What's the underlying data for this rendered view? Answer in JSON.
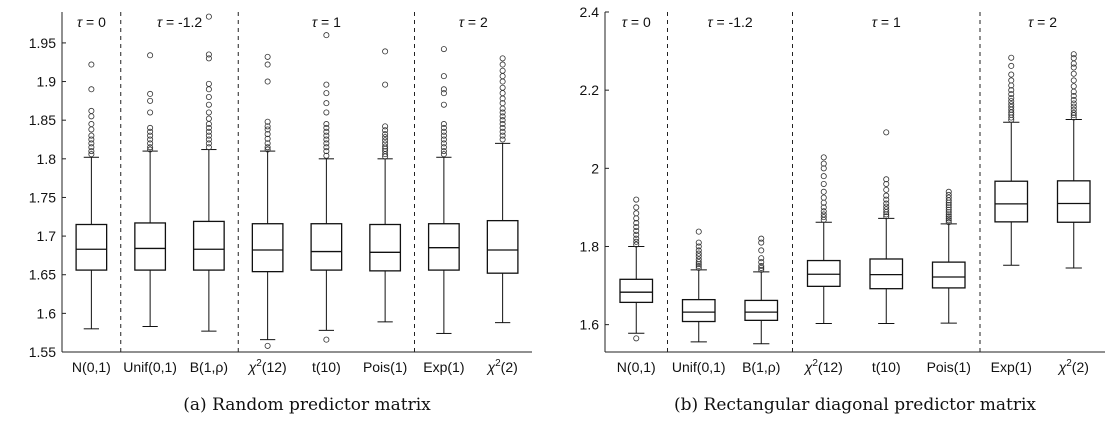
{
  "chart_data": [
    {
      "type": "box",
      "caption": "(a) Random predictor matrix",
      "ylim": [
        1.55,
        1.99
      ],
      "yticks": [
        "1.55",
        "1.6",
        "1.65",
        "1.7",
        "1.75",
        "1.8",
        "1.85",
        "1.9",
        "1.95"
      ],
      "ytick_values": [
        1.55,
        1.6,
        1.65,
        1.7,
        1.75,
        1.8,
        1.85,
        1.9,
        1.95
      ],
      "groups": [
        {
          "label": "τ = 0",
          "size": 1
        },
        {
          "label": "τ = -1.2",
          "size": 2
        },
        {
          "label": "τ = 1",
          "size": 3
        },
        {
          "label": "τ = 2",
          "size": 2
        }
      ],
      "categories": [
        {
          "base": "N(0,1)",
          "sup": ""
        },
        {
          "base": "Unif(0,1)",
          "sup": ""
        },
        {
          "base": "B(1,ρ)",
          "sup": ""
        },
        {
          "base": "χ",
          "sup": "2",
          "tail": "(12)"
        },
        {
          "base": "t(10)",
          "sup": ""
        },
        {
          "base": "Pois(1)",
          "sup": ""
        },
        {
          "base": "Exp(1)",
          "sup": ""
        },
        {
          "base": "χ",
          "sup": "2",
          "tail": "(2)"
        }
      ],
      "boxes": [
        {
          "whislo": 1.58,
          "q1": 1.656,
          "med": 1.683,
          "q3": 1.715,
          "whishi": 1.802,
          "outliers": [
            1.806,
            1.81,
            1.815,
            1.82,
            1.825,
            1.83,
            1.838,
            1.845,
            1.855,
            1.862,
            1.89,
            1.922
          ]
        },
        {
          "whislo": 1.583,
          "q1": 1.656,
          "med": 1.684,
          "q3": 1.717,
          "whishi": 1.81,
          "outliers": [
            1.812,
            1.815,
            1.82,
            1.825,
            1.83,
            1.835,
            1.84,
            1.86,
            1.875,
            1.884,
            1.934
          ]
        },
        {
          "whislo": 1.577,
          "q1": 1.656,
          "med": 1.683,
          "q3": 1.719,
          "whishi": 1.812,
          "outliers": [
            1.815,
            1.82,
            1.825,
            1.83,
            1.835,
            1.84,
            1.845,
            1.852,
            1.86,
            1.87,
            1.88,
            1.89,
            1.897,
            1.93,
            1.935,
            1.984
          ]
        },
        {
          "whislo": 1.566,
          "q1": 1.654,
          "med": 1.682,
          "q3": 1.716,
          "whishi": 1.81,
          "outliers": [
            1.558,
            1.812,
            1.815,
            1.82,
            1.826,
            1.832,
            1.838,
            1.842,
            1.848,
            1.9,
            1.922,
            1.932
          ]
        },
        {
          "whislo": 1.578,
          "q1": 1.656,
          "med": 1.68,
          "q3": 1.716,
          "whishi": 1.8,
          "outliers": [
            1.566,
            1.804,
            1.81,
            1.815,
            1.82,
            1.825,
            1.83,
            1.835,
            1.84,
            1.845,
            1.86,
            1.872,
            1.885,
            1.896,
            1.96
          ]
        },
        {
          "whislo": 1.589,
          "q1": 1.655,
          "med": 1.679,
          "q3": 1.715,
          "whishi": 1.8,
          "outliers": [
            1.803,
            1.806,
            1.81,
            1.813,
            1.816,
            1.82,
            1.824,
            1.828,
            1.832,
            1.837,
            1.842,
            1.896,
            1.939
          ]
        },
        {
          "whislo": 1.574,
          "q1": 1.656,
          "med": 1.685,
          "q3": 1.716,
          "whishi": 1.802,
          "outliers": [
            1.806,
            1.81,
            1.815,
            1.82,
            1.825,
            1.83,
            1.835,
            1.84,
            1.845,
            1.87,
            1.885,
            1.89,
            1.907,
            1.942
          ]
        },
        {
          "whislo": 1.588,
          "q1": 1.652,
          "med": 1.682,
          "q3": 1.72,
          "whishi": 1.82,
          "outliers": [
            1.825,
            1.83,
            1.835,
            1.84,
            1.845,
            1.85,
            1.855,
            1.86,
            1.865,
            1.872,
            1.878,
            1.885,
            1.892,
            1.9,
            1.907,
            1.914,
            1.922,
            1.93
          ]
        }
      ]
    },
    {
      "type": "box",
      "caption": "(b) Rectangular diagonal predictor matrix",
      "ylim": [
        1.53,
        2.4
      ],
      "yticks": [
        "1.6",
        "1.8",
        "2",
        "2.2",
        "2.4"
      ],
      "ytick_values": [
        1.6,
        1.8,
        2.0,
        2.2,
        2.4
      ],
      "groups": [
        {
          "label": "τ = 0",
          "size": 1
        },
        {
          "label": "τ = -1.2",
          "size": 2
        },
        {
          "label": "τ = 1",
          "size": 3
        },
        {
          "label": "τ = 2",
          "size": 2
        }
      ],
      "categories": [
        {
          "base": "N(0,1)",
          "sup": ""
        },
        {
          "base": "Unif(0,1)",
          "sup": ""
        },
        {
          "base": "B(1,ρ)",
          "sup": ""
        },
        {
          "base": "χ",
          "sup": "2",
          "tail": "(12)"
        },
        {
          "base": "t(10)",
          "sup": ""
        },
        {
          "base": "Pois(1)",
          "sup": ""
        },
        {
          "base": "Exp(1)",
          "sup": ""
        },
        {
          "base": "χ",
          "sup": "2",
          "tail": "(2)"
        }
      ],
      "boxes": [
        {
          "whislo": 1.578,
          "q1": 1.657,
          "med": 1.683,
          "q3": 1.716,
          "whishi": 1.8,
          "outliers": [
            1.565,
            1.805,
            1.812,
            1.82,
            1.83,
            1.84,
            1.85,
            1.86,
            1.872,
            1.885,
            1.9,
            1.92
          ]
        },
        {
          "whislo": 1.556,
          "q1": 1.608,
          "med": 1.632,
          "q3": 1.664,
          "whishi": 1.74,
          "outliers": [
            1.745,
            1.75,
            1.755,
            1.76,
            1.767,
            1.775,
            1.782,
            1.79,
            1.8,
            1.81,
            1.838
          ]
        },
        {
          "whislo": 1.551,
          "q1": 1.611,
          "med": 1.632,
          "q3": 1.662,
          "whishi": 1.735,
          "outliers": [
            1.74,
            1.745,
            1.75,
            1.76,
            1.77,
            1.79,
            1.81,
            1.82
          ]
        },
        {
          "whislo": 1.603,
          "q1": 1.698,
          "med": 1.729,
          "q3": 1.764,
          "whishi": 1.862,
          "outliers": [
            1.868,
            1.875,
            1.882,
            1.89,
            1.9,
            1.912,
            1.925,
            1.94,
            1.96,
            1.98,
            2.0,
            2.012,
            2.028
          ]
        },
        {
          "whislo": 1.603,
          "q1": 1.692,
          "med": 1.728,
          "q3": 1.768,
          "whishi": 1.872,
          "outliers": [
            1.877,
            1.882,
            1.888,
            1.895,
            1.902,
            1.91,
            1.92,
            1.93,
            1.945,
            1.96,
            1.972,
            2.092
          ]
        },
        {
          "whislo": 1.604,
          "q1": 1.694,
          "med": 1.722,
          "q3": 1.76,
          "whishi": 1.858,
          "outliers": [
            1.862,
            1.867,
            1.872,
            1.877,
            1.882,
            1.888,
            1.894,
            1.9,
            1.906,
            1.912,
            1.918,
            1.925,
            1.932,
            1.94
          ]
        },
        {
          "whislo": 1.752,
          "q1": 1.863,
          "med": 1.909,
          "q3": 1.967,
          "whishi": 2.118,
          "outliers": [
            2.124,
            2.13,
            2.137,
            2.143,
            2.15,
            2.157,
            2.164,
            2.172,
            2.18,
            2.19,
            2.2,
            2.212,
            2.225,
            2.24,
            2.262,
            2.283
          ]
        },
        {
          "whislo": 1.745,
          "q1": 1.862,
          "med": 1.91,
          "q3": 1.968,
          "whishi": 2.125,
          "outliers": [
            2.13,
            2.136,
            2.142,
            2.15,
            2.158,
            2.166,
            2.175,
            2.185,
            2.196,
            2.21,
            2.225,
            2.242,
            2.258,
            2.268,
            2.282,
            2.292
          ]
        }
      ]
    }
  ]
}
